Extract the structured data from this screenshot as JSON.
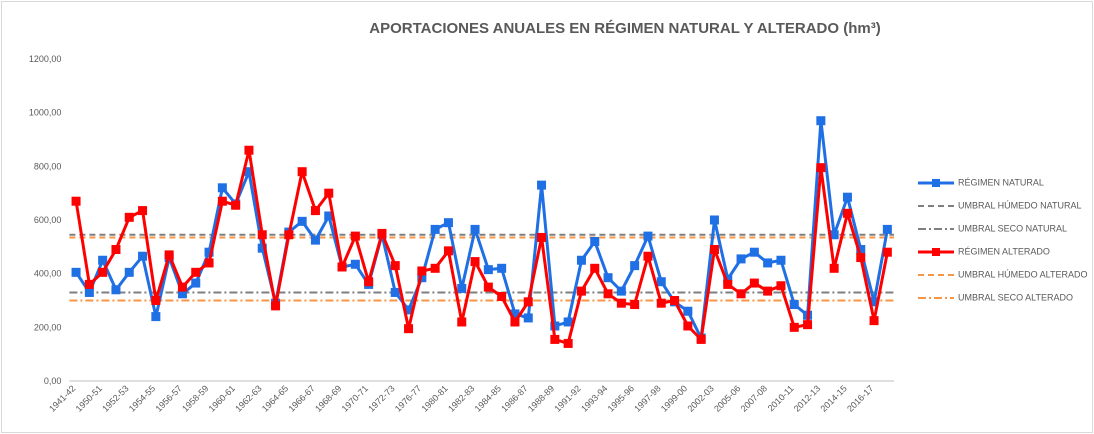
{
  "chart_data": {
    "type": "line",
    "title": "APORTACIONES ANUALES EN RÉGIMEN NATURAL Y ALTERADO (hm³)",
    "categories": [
      "1941-42",
      null,
      "1950-51",
      null,
      "1952-53",
      null,
      "1954-55",
      null,
      "1956-57",
      null,
      "1958-59",
      null,
      "1960-61",
      null,
      "1962-63",
      null,
      "1964-65",
      null,
      "1966-67",
      null,
      "1968-69",
      null,
      "1970-71",
      null,
      "1972-73",
      null,
      "1976-77",
      null,
      "1980-81",
      null,
      "1982-83",
      null,
      "1984-85",
      null,
      "1986-87",
      null,
      "1988-89",
      null,
      "1991-92",
      null,
      "1993-94",
      null,
      "1995-96",
      null,
      "1997-98",
      null,
      "1999-00",
      null,
      "2002-03",
      null,
      "2005-06",
      null,
      "2007-08",
      null,
      "2010-11",
      null,
      "2012-13",
      null,
      "2014-15",
      null,
      "2016-17",
      null
    ],
    "series": [
      {
        "name": "RÉGIMEN NATURAL",
        "color": "#1f6fe5",
        "style": "marker",
        "values": [
          405,
          330,
          450,
          340,
          405,
          465,
          240,
          460,
          325,
          365,
          480,
          720,
          660,
          780,
          495,
          290,
          555,
          595,
          525,
          615,
          425,
          435,
          360,
          545,
          330,
          265,
          385,
          565,
          590,
          345,
          565,
          415,
          420,
          250,
          235,
          730,
          205,
          220,
          450,
          520,
          385,
          335,
          430,
          540,
          370,
          295,
          260,
          160,
          600,
          380,
          455,
          480,
          440,
          450,
          285,
          245,
          970,
          545,
          685,
          490,
          295,
          565
        ]
      },
      {
        "name": "UMBRAL HÚMEDO NATURAL",
        "color": "#7f7f7f",
        "style": "dash",
        "threshold": 545
      },
      {
        "name": "UMBRAL SECO NATURAL",
        "color": "#7f7f7f",
        "style": "dashdot",
        "threshold": 330
      },
      {
        "name": "RÉGIMEN ALTERADO",
        "color": "#ff0000",
        "style": "marker",
        "values": [
          670,
          360,
          405,
          490,
          610,
          635,
          300,
          470,
          350,
          405,
          440,
          670,
          655,
          860,
          545,
          280,
          545,
          780,
          635,
          700,
          425,
          540,
          370,
          550,
          430,
          195,
          410,
          420,
          485,
          220,
          445,
          350,
          315,
          220,
          295,
          535,
          155,
          140,
          335,
          420,
          325,
          290,
          285,
          465,
          290,
          300,
          205,
          155,
          490,
          360,
          325,
          365,
          335,
          355,
          200,
          210,
          795,
          420,
          625,
          460,
          225,
          480
        ]
      },
      {
        "name": "UMBRAL HÚMEDO ALTERADO",
        "color": "#f79646",
        "style": "dash",
        "threshold": 535
      },
      {
        "name": "UMBRAL SECO ALTERADO",
        "color": "#f79646",
        "style": "dashdot",
        "threshold": 300
      }
    ],
    "ylim": [
      0,
      1200
    ],
    "yticks": [
      {
        "value": 0,
        "label": "0,00"
      },
      {
        "value": 200,
        "label": "200,00"
      },
      {
        "value": 400,
        "label": "400,00"
      },
      {
        "value": 600,
        "label": "600,00"
      },
      {
        "value": 800,
        "label": "800,00"
      },
      {
        "value": 1000,
        "label": "1000,00"
      },
      {
        "value": 1200,
        "label": "1200,00"
      }
    ],
    "grid": false,
    "legend": "right"
  }
}
